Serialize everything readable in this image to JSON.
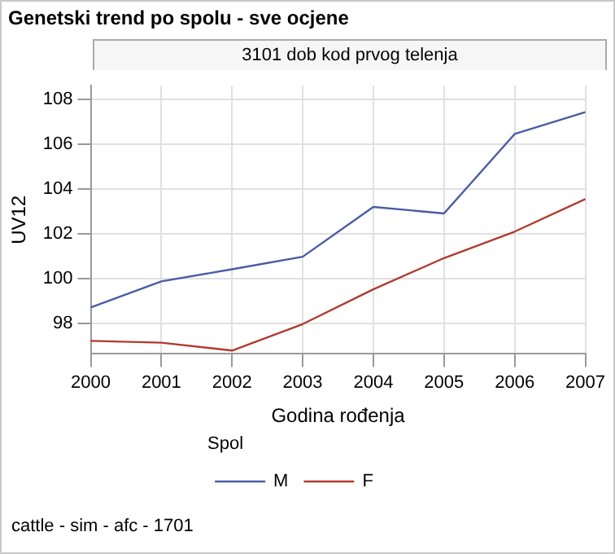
{
  "chart_data": {
    "type": "line",
    "title": "Genetski trend po spolu - sve ocjene",
    "subtitle": "3101 dob kod prvog telenja",
    "xlabel": "Godina rođenja",
    "ylabel": "UV12",
    "legend_title": "Spol",
    "legend": "bottom",
    "grid": true,
    "marker": "none",
    "line_style": "solid",
    "categories": [
      "2000",
      "2001",
      "2002",
      "2003",
      "2004",
      "2005",
      "2006",
      "2007"
    ],
    "ylim": [
      96.65,
      108.6
    ],
    "yticks": [
      98,
      100,
      102,
      104,
      106,
      108
    ],
    "series": [
      {
        "name": "M",
        "color": "#4b5ba5",
        "values": [
          98.72,
          99.88,
          100.42,
          100.98,
          103.2,
          102.91,
          106.45,
          107.42
        ]
      },
      {
        "name": "F",
        "color": "#b23a2e",
        "values": [
          97.23,
          97.15,
          96.8,
          97.98,
          99.53,
          100.92,
          102.1,
          103.55
        ]
      }
    ],
    "annotations": [
      "cattle - sim - afc - 1701"
    ]
  }
}
